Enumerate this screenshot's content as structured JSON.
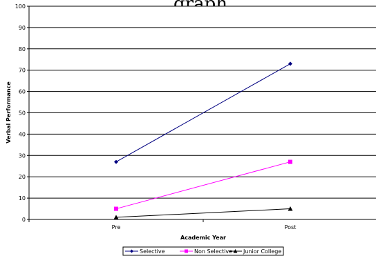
{
  "chart_data": {
    "type": "line",
    "title": "graph",
    "xlabel": "Academic Year",
    "ylabel": "Verbal Performance",
    "categories": [
      "Pre",
      "Post"
    ],
    "ylim": [
      0,
      100
    ],
    "yticks": [
      0,
      10,
      20,
      30,
      40,
      50,
      60,
      70,
      80,
      90,
      100
    ],
    "grid": true,
    "legend_position": "bottom",
    "series": [
      {
        "name": "Selective",
        "values": [
          27,
          73
        ],
        "color": "#000080",
        "marker": "diamond"
      },
      {
        "name": "Non Selective",
        "values": [
          5,
          27
        ],
        "color": "#ff00ff",
        "marker": "square"
      },
      {
        "name": "Junior College",
        "values": [
          1,
          5
        ],
        "color": "#000000",
        "marker": "triangle"
      }
    ]
  }
}
